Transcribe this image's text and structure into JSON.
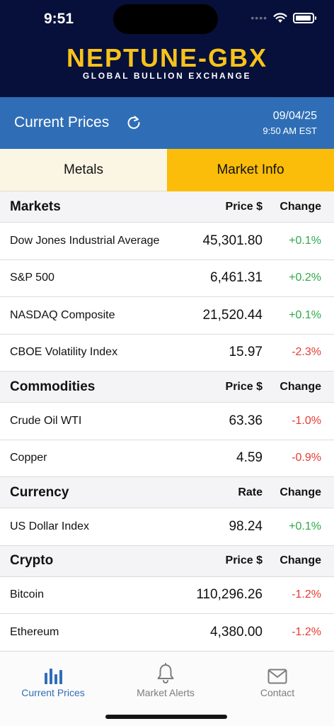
{
  "status_bar": {
    "time": "9:51"
  },
  "brand": {
    "name": "NEPTUNE-GBX",
    "tagline": "GLOBAL BULLION EXCHANGE"
  },
  "title_bar": {
    "title": "Current Prices",
    "date": "09/04/25",
    "time": "9:50 AM EST"
  },
  "tabs": [
    {
      "label": "Metals",
      "selected": false
    },
    {
      "label": "Market Info",
      "selected": true
    }
  ],
  "sections": [
    {
      "name": "Markets",
      "col_price": "Price $",
      "col_change": "Change",
      "rows": [
        {
          "name": "Dow Jones Industrial Average",
          "price": "45,301.80",
          "change": "+0.1%"
        },
        {
          "name": "S&P 500",
          "price": "6,461.31",
          "change": "+0.2%"
        },
        {
          "name": "NASDAQ Composite",
          "price": "21,520.44",
          "change": "+0.1%"
        },
        {
          "name": "CBOE Volatility Index",
          "price": "15.97",
          "change": "-2.3%"
        }
      ]
    },
    {
      "name": "Commodities",
      "col_price": "Price $",
      "col_change": "Change",
      "rows": [
        {
          "name": "Crude Oil WTI",
          "price": "63.36",
          "change": "-1.0%"
        },
        {
          "name": "Copper",
          "price": "4.59",
          "change": "-0.9%"
        }
      ]
    },
    {
      "name": "Currency",
      "col_price": "Rate",
      "col_change": "Change",
      "rows": [
        {
          "name": "US Dollar Index",
          "price": "98.24",
          "change": "+0.1%"
        }
      ]
    },
    {
      "name": "Crypto",
      "col_price": "Price $",
      "col_change": "Change",
      "rows": [
        {
          "name": "Bitcoin",
          "price": "110,296.26",
          "change": "-1.2%"
        },
        {
          "name": "Ethereum",
          "price": "4,380.00",
          "change": "-1.2%"
        }
      ]
    }
  ],
  "bottom_nav": [
    {
      "label": "Current Prices",
      "icon": "bar-chart-icon",
      "active": true
    },
    {
      "label": "Market Alerts",
      "icon": "bell-icon",
      "active": false
    },
    {
      "label": "Contact",
      "icon": "envelope-icon",
      "active": false
    }
  ],
  "colors": {
    "header_bg": "#07103a",
    "brand_gold": "#f7c21a",
    "title_bar_bg": "#2f6eb6",
    "active_tab_bg": "#fbbd09",
    "inactive_tab_bg": "#fbf5e4",
    "positive": "#2ea84a",
    "negative": "#e53a31"
  }
}
